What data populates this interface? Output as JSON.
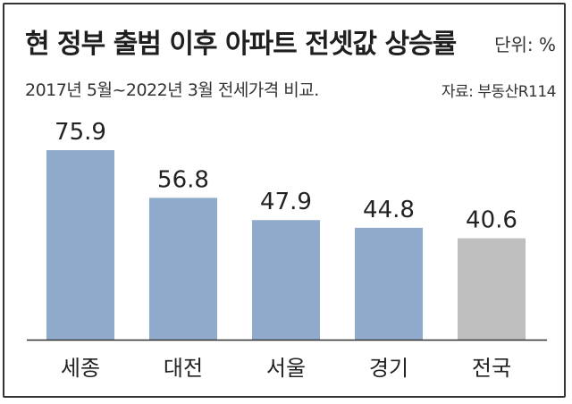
{
  "chart_data": {
    "type": "bar",
    "title": "현 정부 출범 이후 아파트 전셋값 상승률",
    "unit": "단위: %",
    "subtitle": "2017년 5월~2022년 3월 전세가격 비교.",
    "source": "자료: 부동산R114",
    "categories": [
      "세종",
      "대전",
      "서울",
      "경기",
      "전국"
    ],
    "values": [
      75.9,
      56.8,
      47.9,
      44.8,
      40.6
    ],
    "value_labels": [
      "75.9",
      "56.8",
      "47.9",
      "44.8",
      "40.6"
    ],
    "ylim": [
      0,
      80
    ],
    "colors": {
      "region": "#8faacb",
      "national": "#bfbfbf",
      "baseline": "#333333"
    },
    "bar_colors": [
      "region",
      "region",
      "region",
      "region",
      "national"
    ]
  }
}
